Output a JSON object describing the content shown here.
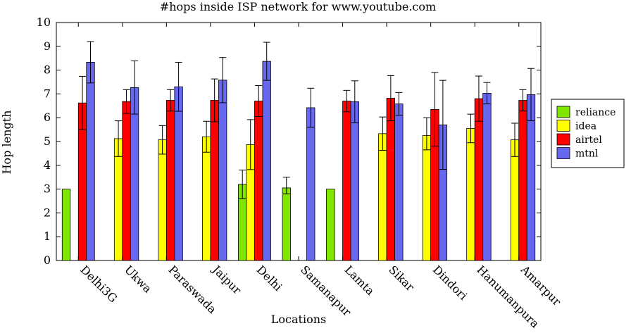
{
  "chart_data": {
    "type": "bar",
    "title": "#hops inside ISP network for www.youtube.com",
    "xlabel": "Locations",
    "ylabel": "Hop length",
    "ylim": [
      0,
      10
    ],
    "yticks": [
      0,
      1,
      2,
      3,
      4,
      5,
      6,
      7,
      8,
      9,
      10
    ],
    "grid": false,
    "legend_position": "right",
    "categories": [
      "Delhi3G",
      "Ukwa",
      "Paraswada",
      "Jaipur",
      "Delhi",
      "Samanapur",
      "Lamta",
      "Sikar",
      "Dindori",
      "Hanumanpura",
      "Amarpur"
    ],
    "series": [
      {
        "name": "reliance",
        "color": "#7fe600",
        "values": [
          3.0,
          null,
          null,
          null,
          3.2,
          3.05,
          3.0,
          null,
          null,
          null,
          null
        ],
        "err_low": [
          0,
          null,
          null,
          null,
          0.6,
          0.25,
          0,
          null,
          null,
          null,
          null
        ],
        "err_high": [
          0,
          null,
          null,
          null,
          0.6,
          0.45,
          0,
          null,
          null,
          null,
          null
        ]
      },
      {
        "name": "idea",
        "color": "#ffff00",
        "values": [
          null,
          5.12,
          5.07,
          5.2,
          4.87,
          null,
          null,
          5.33,
          5.25,
          5.55,
          5.07
        ],
        "err_low": [
          null,
          0.75,
          0.6,
          0.65,
          1.05,
          null,
          null,
          0.7,
          0.6,
          0.6,
          0.7
        ],
        "err_high": [
          null,
          0.75,
          0.6,
          0.65,
          1.05,
          null,
          null,
          0.7,
          0.75,
          0.6,
          0.7
        ]
      },
      {
        "name": "airtel",
        "color": "#ff0000",
        "values": [
          6.62,
          6.68,
          6.73,
          6.73,
          6.7,
          null,
          6.7,
          6.82,
          6.35,
          6.8,
          6.73
        ],
        "err_low": [
          1.12,
          0.5,
          0.45,
          0.9,
          0.65,
          null,
          0.45,
          0.95,
          1.55,
          0.95,
          0.45
        ],
        "err_high": [
          1.12,
          0.5,
          0.45,
          0.9,
          0.65,
          null,
          0.45,
          0.95,
          1.55,
          0.95,
          0.45
        ]
      },
      {
        "name": "mtnl",
        "color": "#6868ee",
        "values": [
          8.33,
          7.27,
          7.3,
          7.58,
          8.37,
          6.42,
          6.67,
          6.58,
          5.7,
          7.03,
          6.97
        ],
        "err_low": [
          0.87,
          1.12,
          1.03,
          0.95,
          0.8,
          0.82,
          0.88,
          0.48,
          1.87,
          0.45,
          1.1
        ],
        "err_high": [
          0.87,
          1.12,
          1.03,
          0.95,
          0.8,
          0.82,
          0.88,
          0.48,
          1.87,
          0.45,
          1.1
        ]
      }
    ]
  }
}
